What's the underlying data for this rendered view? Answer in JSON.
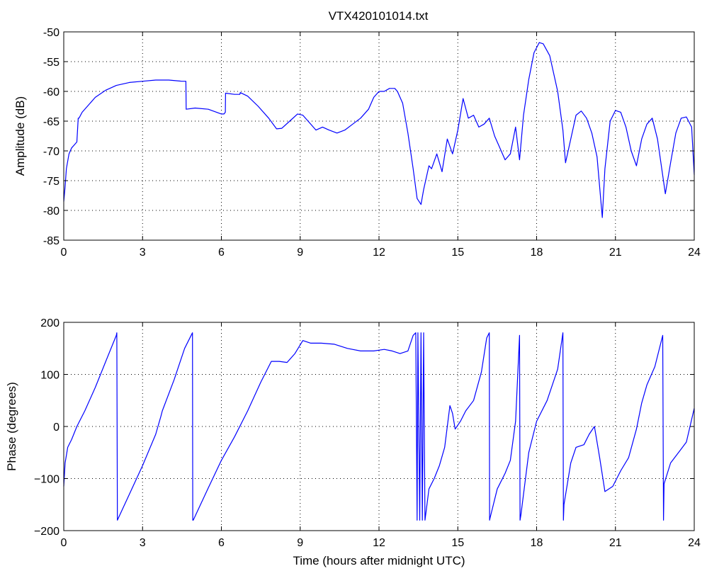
{
  "figure": {
    "title": "VTX420101014.txt",
    "line_color": "#0000ff"
  },
  "chart_data": [
    {
      "type": "line",
      "title": "VTX420101014.txt",
      "xlabel": "",
      "ylabel": "Amplitude (dB)",
      "xlim": [
        0,
        24
      ],
      "ylim": [
        -85,
        -50
      ],
      "xticks": [
        0,
        3,
        6,
        9,
        12,
        15,
        18,
        21,
        24
      ],
      "yticks": [
        -85,
        -80,
        -75,
        -70,
        -65,
        -60,
        -55,
        -50
      ],
      "xtick_labels": [
        "0",
        "3",
        "6",
        "9",
        "12",
        "15",
        "18",
        "21",
        "24"
      ],
      "ytick_labels": [
        "-85",
        "-80",
        "-75",
        "-70",
        "-65",
        "-60",
        "-55",
        "-50"
      ],
      "grid": true,
      "series": [
        {
          "color": "#0000ff",
          "x": [
            0,
            0.05,
            0.1,
            0.2,
            0.3,
            0.4,
            0.5,
            0.55,
            0.58,
            0.7,
            0.9,
            1.2,
            1.6,
            2.0,
            2.5,
            3.0,
            3.5,
            4.0,
            4.5,
            4.65,
            4.66,
            5.0,
            5.5,
            6.0,
            6.1,
            6.15,
            6.16,
            6.5,
            6.7,
            6.72,
            7.0,
            7.4,
            7.8,
            8.1,
            8.3,
            8.6,
            8.9,
            9.1,
            9.3,
            9.6,
            9.85,
            10.1,
            10.4,
            10.7,
            11.0,
            11.3,
            11.6,
            11.8,
            12.0,
            12.2,
            12.4,
            12.6,
            12.7,
            12.9,
            13.1,
            13.3,
            13.45,
            13.6,
            13.7,
            13.9,
            14.0,
            14.2,
            14.4,
            14.6,
            14.8,
            15.0,
            15.2,
            15.4,
            15.6,
            15.8,
            16.0,
            16.2,
            16.4,
            16.6,
            16.8,
            17.0,
            17.2,
            17.35,
            17.5,
            17.7,
            17.9,
            18.1,
            18.25,
            18.5,
            18.8,
            19.0,
            19.1,
            19.3,
            19.5,
            19.7,
            19.9,
            20.1,
            20.3,
            20.5,
            20.6,
            20.8,
            21.0,
            21.2,
            21.4,
            21.6,
            21.8,
            22.0,
            22.2,
            22.4,
            22.6,
            22.9,
            23.1,
            23.3,
            23.5,
            23.7,
            23.9,
            24.0
          ],
          "y": [
            -78.5,
            -76,
            -73,
            -70.5,
            -69.5,
            -69,
            -68.5,
            -64.5,
            -64.5,
            -63.5,
            -62.5,
            -61,
            -59.8,
            -59,
            -58.5,
            -58.3,
            -58.1,
            -58.1,
            -58.3,
            -58.3,
            -63,
            -62.8,
            -63,
            -63.8,
            -63.8,
            -63.5,
            -60.3,
            -60.5,
            -60.5,
            -60.2,
            -60.8,
            -62.5,
            -64.5,
            -66.3,
            -66.2,
            -65,
            -63.8,
            -64,
            -65,
            -66.5,
            -66,
            -66.5,
            -67,
            -66.5,
            -65.5,
            -64.5,
            -63,
            -61,
            -60,
            -60,
            -59.5,
            -59.5,
            -60,
            -62,
            -67,
            -73,
            -78,
            -79,
            -76.5,
            -72.5,
            -73,
            -70.5,
            -73.5,
            -68,
            -70.5,
            -66.5,
            -61.2,
            -64.5,
            -64,
            -66,
            -65.5,
            -64.5,
            -67.5,
            -69.5,
            -71.5,
            -70.5,
            -66,
            -71.5,
            -64,
            -58,
            -53.5,
            -51.8,
            -52,
            -54,
            -60,
            -66.5,
            -72,
            -68,
            -64,
            -63.3,
            -64.5,
            -67,
            -71,
            -81.2,
            -73,
            -65,
            -63.2,
            -63.5,
            -66,
            -70,
            -72.5,
            -68,
            -65.5,
            -64.5,
            -68,
            -77.2,
            -72,
            -67,
            -64.5,
            -64.3,
            -66,
            -74
          ]
        }
      ]
    },
    {
      "type": "line",
      "title": "",
      "xlabel": "Time (hours after midnight UTC)",
      "ylabel": "Phase (degrees)",
      "xlim": [
        0,
        24
      ],
      "ylim": [
        -200,
        200
      ],
      "xticks": [
        0,
        3,
        6,
        9,
        12,
        15,
        18,
        21,
        24
      ],
      "yticks": [
        -200,
        -100,
        0,
        100,
        200
      ],
      "xtick_labels": [
        "0",
        "3",
        "6",
        "9",
        "12",
        "15",
        "18",
        "21",
        "24"
      ],
      "ytick_labels": [
        "−200",
        "−100",
        "0",
        "100",
        "200"
      ],
      "grid": true,
      "series": [
        {
          "color": "#0000ff",
          "x": [
            0,
            0.05,
            0.15,
            0.3,
            0.5,
            0.8,
            1.2,
            1.6,
            2.0,
            2.02,
            2.04,
            2.5,
            3.0,
            3.5,
            3.7,
            3.75,
            4.2,
            4.6,
            4.9,
            4.91,
            4.93,
            5.5,
            6.0,
            6.5,
            7.0,
            7.5,
            7.9,
            8.2,
            8.5,
            8.8,
            9.1,
            9.4,
            9.8,
            10.3,
            10.8,
            11.3,
            11.8,
            12.2,
            12.5,
            12.8,
            13.1,
            13.3,
            13.4,
            13.45,
            13.48,
            13.55,
            13.6,
            13.65,
            13.7,
            13.75,
            13.8,
            13.9,
            14.1,
            14.3,
            14.5,
            14.7,
            14.8,
            14.9,
            15.1,
            15.3,
            15.6,
            15.9,
            16.1,
            16.2,
            16.21,
            16.23,
            16.5,
            16.8,
            17.0,
            17.2,
            17.35,
            17.37,
            17.4,
            17.7,
            18.0,
            18.4,
            18.8,
            19.0,
            19.02,
            19.04,
            19.3,
            19.5,
            19.8,
            20.0,
            20.2,
            20.4,
            20.6,
            20.9,
            21.2,
            21.5,
            21.8,
            22.0,
            22.2,
            22.5,
            22.8,
            22.83,
            22.85,
            23.1,
            23.4,
            23.7,
            24.0
          ],
          "y": [
            -115,
            -70,
            -40,
            -25,
            0,
            30,
            75,
            125,
            175,
            180,
            -180,
            -130,
            -75,
            -15,
            20,
            30,
            90,
            150,
            180,
            -180,
            -180,
            -118,
            -65,
            -20,
            30,
            85,
            125,
            125,
            123,
            140,
            165,
            160,
            160,
            158,
            150,
            145,
            145,
            148,
            145,
            140,
            145,
            175,
            180,
            -180,
            180,
            -180,
            180,
            -180,
            180,
            -180,
            -160,
            -120,
            -100,
            -75,
            -40,
            40,
            25,
            -5,
            10,
            30,
            50,
            105,
            170,
            180,
            -180,
            -175,
            -120,
            -90,
            -65,
            10,
            175,
            -180,
            -170,
            -50,
            10,
            50,
            110,
            180,
            -180,
            -150,
            -70,
            -40,
            -35,
            -15,
            0,
            -60,
            -125,
            -115,
            -85,
            -60,
            -5,
            45,
            80,
            115,
            175,
            -180,
            -110,
            -70,
            -50,
            -30,
            35
          ]
        }
      ]
    }
  ]
}
